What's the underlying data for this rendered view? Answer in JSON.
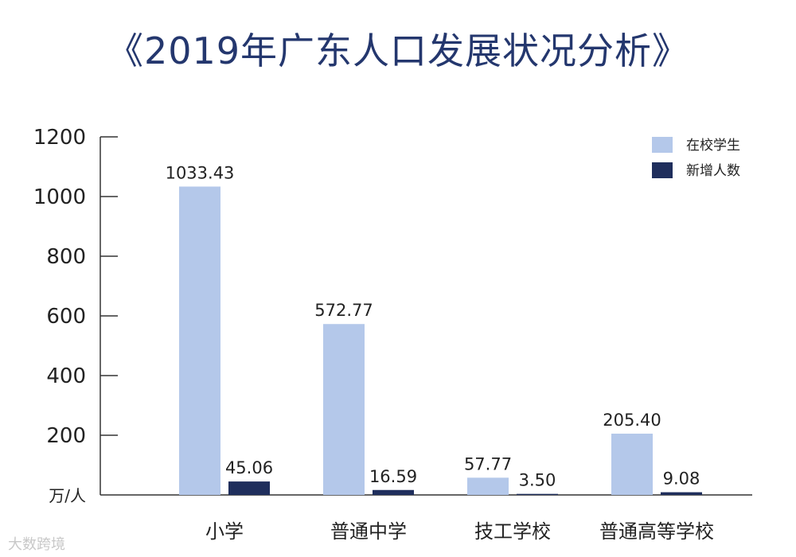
{
  "title": "《2019年广东人口发展状况分析》",
  "watermark": "大数跨境",
  "chart_data": {
    "type": "bar",
    "ylabel": "万/人",
    "ylim": [
      0,
      1200
    ],
    "yticks": [
      200,
      400,
      600,
      800,
      1000,
      1200
    ],
    "categories": [
      "小学",
      "普通中学",
      "技工学校",
      "普通高等学校"
    ],
    "series": [
      {
        "name": "在校学生",
        "color": "#b4c8ea",
        "values": [
          1033.43,
          572.77,
          57.77,
          205.4
        ],
        "labels": [
          "1033.43",
          "572.77",
          "57.77",
          "205.40"
        ]
      },
      {
        "name": "新增人数",
        "color": "#1f2e5c",
        "values": [
          45.06,
          16.59,
          3.5,
          9.08
        ],
        "labels": [
          "45.06",
          "16.59",
          "3.50",
          "9.08"
        ]
      }
    ],
    "legend": "top-right",
    "grid": false
  }
}
